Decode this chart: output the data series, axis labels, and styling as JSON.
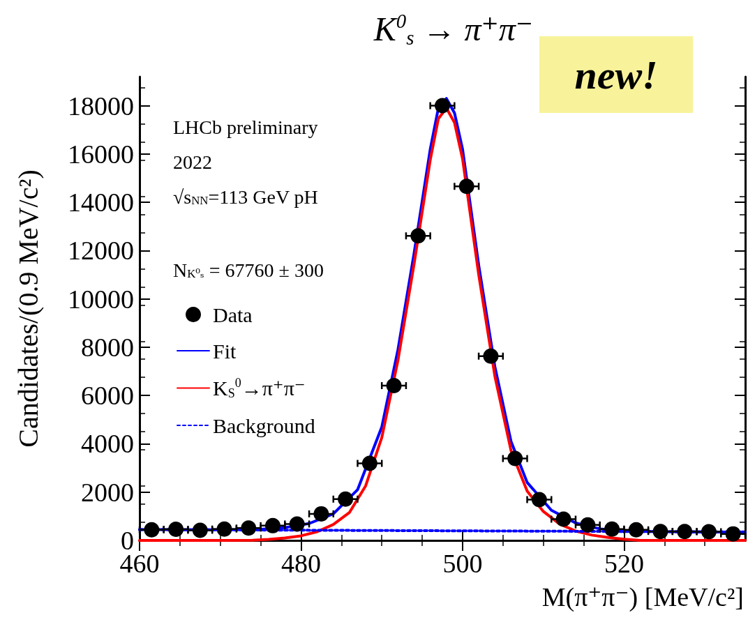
{
  "chart_data": {
    "type": "scatter",
    "title": "K$^{0}$$_{s}$ → π⁺π⁻",
    "xlabel": "M(π⁺π⁻) [MeV/c²]",
    "ylabel": "Candidates/(0.9 MeV/c²)",
    "annotations": [
      "LHCb preliminary",
      "2022",
      "√s$_{NN}$=113 GeV pH",
      "N$_{K⁰ₛ}$ = 67760 ± 300",
      "new!"
    ],
    "xlim": [
      460,
      535
    ],
    "xticks": [
      460,
      480,
      500,
      520
    ],
    "ylim": [
      0,
      19200
    ],
    "yticks": [
      0,
      2000,
      4000,
      6000,
      8000,
      10000,
      12000,
      14000,
      16000,
      18000
    ],
    "legend": "bottom left",
    "grid": false,
    "series": [
      {
        "name": "Data",
        "marker": "circle",
        "color": "#000000",
        "x": [
          461.5,
          464.5,
          467.5,
          470.5,
          473.5,
          476.5,
          479.5,
          482.5,
          485.5,
          488.5,
          491.5,
          494.5,
          497.5,
          500.5,
          503.5,
          506.5,
          509.5,
          512.5,
          515.5,
          518.5,
          521.5,
          524.5,
          527.5,
          530.5,
          533.5
        ],
        "values": [
          440,
          460,
          420,
          470,
          510,
          610,
          680,
          1100,
          1710,
          3190,
          6410,
          12610,
          18000,
          14660,
          7630,
          3390,
          1690,
          880,
          640,
          470,
          440,
          370,
          370,
          360,
          270
        ],
        "xerrors": [
          1.5,
          1.5,
          1.5,
          1.5,
          1.5,
          1.5,
          1.5,
          1.5,
          1.5,
          1.5,
          1.5,
          1.5,
          1.5,
          1.5,
          1.5,
          1.5,
          1.5,
          1.5,
          1.5,
          1.5,
          1.5,
          1.5,
          1.5,
          1.5,
          1.5
        ]
      },
      {
        "name": "Fit",
        "type": "line",
        "color": "#0000ff",
        "line_style": "solid",
        "x": [
          460,
          463,
          466,
          469,
          472,
          475,
          478,
          481,
          484,
          487,
          490,
          492,
          494,
          496,
          497,
          498,
          499,
          500,
          502,
          504,
          506,
          508,
          511,
          514,
          517,
          520,
          523,
          526,
          529,
          532,
          535
        ],
        "values": [
          450,
          450,
          440,
          440,
          450,
          460,
          530,
          700,
          1100,
          2100,
          4700,
          7900,
          11900,
          16200,
          17900,
          18300,
          17700,
          16200,
          11400,
          7200,
          4100,
          2400,
          1250,
          720,
          480,
          390,
          370,
          360,
          350,
          350,
          350
        ]
      },
      {
        "name": "K$_{S}$$^{0}$→π⁺π⁻",
        "type": "line",
        "color": "#ff0000",
        "line_style": "solid",
        "x": [
          460,
          470,
          474,
          476,
          478,
          480,
          482,
          484,
          486,
          488,
          490,
          492,
          494,
          496,
          497,
          498,
          499,
          500,
          502,
          504,
          506,
          508,
          510,
          512,
          514,
          516,
          518,
          520,
          522,
          535
        ],
        "values": [
          0,
          0,
          10,
          40,
          100,
          190,
          360,
          660,
          1160,
          2260,
          4260,
          7460,
          11460,
          15760,
          17460,
          17900,
          17300,
          15800,
          11000,
          6800,
          3720,
          2040,
          1200,
          680,
          390,
          220,
          120,
          50,
          0,
          0
        ]
      },
      {
        "name": "Background",
        "type": "line",
        "color": "#0000ff",
        "line_style": "dotted",
        "x": [
          460,
          535
        ],
        "values": [
          450,
          350
        ]
      }
    ]
  }
}
